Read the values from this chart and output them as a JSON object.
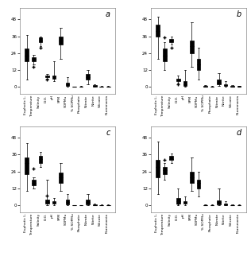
{
  "labels": [
    "Euphotic L.",
    "Temperature",
    "Salinity",
    "D.O.",
    "pH",
    "SPM",
    "SOPMu",
    "% SOPMu",
    "Phosphate",
    "Nitrate",
    "Nitrite",
    "Silicate",
    "N-ammonia"
  ],
  "panels": [
    {
      "label": "a",
      "boxes": [
        {
          "med": 22,
          "q1": 18,
          "q3": 27,
          "whislo": 5,
          "whishi": 37,
          "fliers": []
        },
        {
          "med": 20,
          "q1": 18,
          "q3": 21,
          "whislo": 16,
          "whishi": 23,
          "fliers": [
            14
          ]
        },
        {
          "med": 33,
          "q1": 32,
          "q3": 35,
          "whislo": 29,
          "whishi": 36,
          "fliers": [
            28
          ]
        },
        {
          "med": 7.5,
          "q1": 7,
          "q3": 8,
          "whislo": 6,
          "whishi": 9,
          "fliers": [
            5
          ]
        },
        {
          "med": 7.5,
          "q1": 6,
          "q3": 8,
          "whislo": 4,
          "whishi": 18,
          "fliers": []
        },
        {
          "med": 33,
          "q1": 30,
          "q3": 36,
          "whislo": 20,
          "whishi": 42,
          "fliers": []
        },
        {
          "med": 2,
          "q1": 0.5,
          "q3": 3,
          "whislo": 0,
          "whishi": 7,
          "fliers": []
        },
        {
          "med": 0.1,
          "q1": 0.05,
          "q3": 0.15,
          "whislo": 0,
          "whishi": 0.3,
          "fliers": []
        },
        {
          "med": 0.1,
          "q1": 0.05,
          "q3": 0.2,
          "whislo": 0,
          "whishi": 0.4,
          "fliers": []
        },
        {
          "med": 7,
          "q1": 5,
          "q3": 9,
          "whislo": 2,
          "whishi": 12,
          "fliers": []
        },
        {
          "med": 0.5,
          "q1": 0.2,
          "q3": 1,
          "whislo": 0,
          "whishi": 2,
          "fliers": []
        },
        {
          "med": 0.2,
          "q1": 0.1,
          "q3": 0.3,
          "whislo": 0,
          "whishi": 0.5,
          "fliers": []
        },
        {
          "med": 0.1,
          "q1": 0.05,
          "q3": 0.2,
          "whislo": 0,
          "whishi": 0.4,
          "fliers": []
        }
      ]
    },
    {
      "label": "b",
      "boxes": [
        {
          "med": 40,
          "q1": 36,
          "q3": 44,
          "whislo": 20,
          "whishi": 50,
          "fliers": []
        },
        {
          "med": 22,
          "q1": 18,
          "q3": 27,
          "whislo": 12,
          "whishi": 32,
          "fliers": [
            35
          ]
        },
        {
          "med": 33,
          "q1": 32,
          "q3": 34,
          "whislo": 30,
          "whishi": 36,
          "fliers": [
            28
          ]
        },
        {
          "med": 5,
          "q1": 4,
          "q3": 6,
          "whislo": 3,
          "whishi": 8,
          "fliers": [
            2
          ]
        },
        {
          "med": 2,
          "q1": 0.5,
          "q3": 4,
          "whislo": 0,
          "whishi": 12,
          "fliers": []
        },
        {
          "med": 29,
          "q1": 24,
          "q3": 33,
          "whislo": 14,
          "whishi": 46,
          "fliers": []
        },
        {
          "med": 16,
          "q1": 12,
          "q3": 20,
          "whislo": 5,
          "whishi": 28,
          "fliers": []
        },
        {
          "med": 0.3,
          "q1": 0.1,
          "q3": 0.5,
          "whislo": 0,
          "whishi": 1,
          "fliers": []
        },
        {
          "med": 0.1,
          "q1": 0.05,
          "q3": 0.2,
          "whislo": 0,
          "whishi": 0.5,
          "fliers": []
        },
        {
          "med": 3,
          "q1": 2,
          "q3": 5,
          "whislo": 0.5,
          "whishi": 10,
          "fliers": []
        },
        {
          "med": 1,
          "q1": 0.5,
          "q3": 2,
          "whislo": 0,
          "whishi": 4,
          "fliers": []
        },
        {
          "med": 0.3,
          "q1": 0.1,
          "q3": 0.5,
          "whislo": 0,
          "whishi": 1,
          "fliers": []
        },
        {
          "med": 0.2,
          "q1": 0.1,
          "q3": 0.4,
          "whislo": 0,
          "whishi": 0.8,
          "fliers": []
        }
      ]
    },
    {
      "label": "c",
      "boxes": [
        {
          "med": 30,
          "q1": 22,
          "q3": 34,
          "whislo": 10,
          "whishi": 44,
          "fliers": []
        },
        {
          "med": 16,
          "q1": 14,
          "q3": 18,
          "whislo": 12,
          "whishi": 20,
          "fliers": [
            26
          ]
        },
        {
          "med": 33,
          "q1": 30,
          "q3": 35,
          "whislo": 27,
          "whishi": 38,
          "fliers": []
        },
        {
          "med": 2,
          "q1": 1,
          "q3": 4,
          "whislo": 0,
          "whishi": 18,
          "fliers": [
            7
          ]
        },
        {
          "med": 2,
          "q1": 1,
          "q3": 3,
          "whislo": 0,
          "whishi": 5,
          "fliers": []
        },
        {
          "med": 20,
          "q1": 16,
          "q3": 23,
          "whislo": 10,
          "whishi": 30,
          "fliers": []
        },
        {
          "med": 2,
          "q1": 0.5,
          "q3": 4,
          "whislo": 0,
          "whishi": 8,
          "fliers": []
        },
        {
          "med": 0.05,
          "q1": 0.02,
          "q3": 0.1,
          "whislo": 0,
          "whishi": 0.2,
          "fliers": []
        },
        {
          "med": 0.05,
          "q1": 0.02,
          "q3": 0.1,
          "whislo": 0,
          "whishi": 0.2,
          "fliers": []
        },
        {
          "med": 2,
          "q1": 0.5,
          "q3": 4,
          "whislo": 0,
          "whishi": 8,
          "fliers": []
        },
        {
          "med": 0.2,
          "q1": 0.1,
          "q3": 0.5,
          "whislo": 0,
          "whishi": 1,
          "fliers": []
        },
        {
          "med": 0.1,
          "q1": 0.05,
          "q3": 0.2,
          "whislo": 0,
          "whishi": 0.5,
          "fliers": []
        },
        {
          "med": 0.1,
          "q1": 0.05,
          "q3": 0.2,
          "whislo": 0,
          "whishi": 0.4,
          "fliers": []
        }
      ]
    },
    {
      "label": "d",
      "boxes": [
        {
          "med": 27,
          "q1": 20,
          "q3": 32,
          "whislo": 8,
          "whishi": 45,
          "fliers": []
        },
        {
          "med": 25,
          "q1": 22,
          "q3": 27,
          "whislo": 18,
          "whishi": 30,
          "fliers": [
            32
          ]
        },
        {
          "med": 33,
          "q1": 32,
          "q3": 35,
          "whislo": 30,
          "whishi": 37,
          "fliers": []
        },
        {
          "med": 3,
          "q1": 1,
          "q3": 5,
          "whislo": 0,
          "whishi": 12,
          "fliers": [
            1
          ]
        },
        {
          "med": 2,
          "q1": 1,
          "q3": 3,
          "whislo": 0,
          "whishi": 6,
          "fliers": []
        },
        {
          "med": 20,
          "q1": 16,
          "q3": 24,
          "whislo": 10,
          "whishi": 34,
          "fliers": []
        },
        {
          "med": 16,
          "q1": 12,
          "q3": 18,
          "whislo": 6,
          "whishi": 24,
          "fliers": []
        },
        {
          "med": 0.1,
          "q1": 0.05,
          "q3": 0.2,
          "whislo": 0,
          "whishi": 0.5,
          "fliers": []
        },
        {
          "med": 0.1,
          "q1": 0.05,
          "q3": 0.2,
          "whislo": 0,
          "whishi": 0.5,
          "fliers": []
        },
        {
          "med": 2,
          "q1": 0.5,
          "q3": 3.5,
          "whislo": 0,
          "whishi": 12,
          "fliers": []
        },
        {
          "med": 0.5,
          "q1": 0.2,
          "q3": 1,
          "whislo": 0,
          "whishi": 3,
          "fliers": []
        },
        {
          "med": 0.1,
          "q1": 0.05,
          "q3": 0.2,
          "whislo": 0,
          "whishi": 0.5,
          "fliers": []
        },
        {
          "med": 0.05,
          "q1": 0.02,
          "q3": 0.1,
          "whislo": 0,
          "whishi": 0.3,
          "fliers": []
        }
      ]
    }
  ],
  "ylim": [
    -5,
    56
  ],
  "yticks": [
    0,
    12,
    24,
    36,
    48
  ],
  "box_color": "#d0d0d0",
  "median_color": "#000000",
  "whisker_color": "#000000",
  "flier_color": "#000000",
  "background_color": "#ffffff"
}
